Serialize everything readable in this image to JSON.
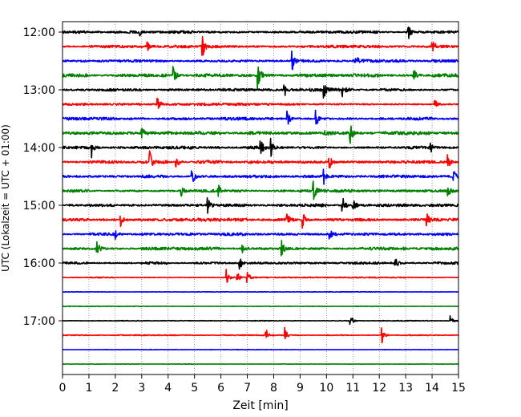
{
  "chart_data": {
    "type": "line",
    "xlabel": "Zeit  [min]",
    "ylabel": "UTC (Lokalzeit = UTC + 01:00)",
    "xlim": [
      0,
      15
    ],
    "x_ticks": [
      0,
      1,
      2,
      3,
      4,
      5,
      6,
      7,
      8,
      9,
      10,
      11,
      12,
      13,
      14,
      15
    ],
    "y_tick_labels": [
      "12:00",
      "13:00",
      "14:00",
      "15:00",
      "16:00",
      "17:00"
    ],
    "y_tick_rows": [
      0,
      4,
      8,
      12,
      16,
      20
    ],
    "grid": "vertical dotted at each minute",
    "colors": [
      "#000000",
      "#ff0000",
      "#0000ff",
      "#008000"
    ],
    "rows": [
      {
        "start": "12:00",
        "color": "#000000",
        "noise": 0.55,
        "events": [
          {
            "t": 2.9,
            "amp": 1.5
          },
          {
            "t": 13.1,
            "amp": 1.4
          }
        ]
      },
      {
        "start": "12:15",
        "color": "#ff0000",
        "noise": 0.55,
        "events": [
          {
            "t": 5.3,
            "amp": 2.2
          },
          {
            "t": 14.0,
            "amp": 1.8
          },
          {
            "t": 3.2,
            "amp": 0.9
          }
        ]
      },
      {
        "start": "12:30",
        "color": "#0000ff",
        "noise": 0.55,
        "events": [
          {
            "t": 8.7,
            "amp": 1.9
          },
          {
            "t": 11.1,
            "amp": 1.2
          }
        ]
      },
      {
        "start": "12:45",
        "color": "#008000",
        "noise": 0.65,
        "events": [
          {
            "t": 7.4,
            "amp": 3.8
          },
          {
            "t": 4.2,
            "amp": 1.6
          },
          {
            "t": 13.3,
            "amp": 1.4
          }
        ]
      },
      {
        "start": "13:00",
        "color": "#000000",
        "noise": 0.6,
        "events": [
          {
            "t": 8.4,
            "amp": 1.6
          },
          {
            "t": 9.9,
            "amp": 1.5
          },
          {
            "t": 10.6,
            "amp": 1.2
          }
        ]
      },
      {
        "start": "13:15",
        "color": "#ff0000",
        "noise": 0.55,
        "events": [
          {
            "t": 3.6,
            "amp": 1.5
          },
          {
            "t": 14.1,
            "amp": 1.4
          }
        ]
      },
      {
        "start": "13:30",
        "color": "#0000ff",
        "noise": 0.55,
        "events": [
          {
            "t": 8.5,
            "amp": 1.8
          },
          {
            "t": 9.6,
            "amp": 1.7
          }
        ]
      },
      {
        "start": "13:45",
        "color": "#008000",
        "noise": 0.7,
        "events": [
          {
            "t": 3.0,
            "amp": 1.5
          },
          {
            "t": 10.9,
            "amp": 1.8
          },
          {
            "t": 9.9,
            "amp": 1.0
          }
        ]
      },
      {
        "start": "14:00",
        "color": "#000000",
        "noise": 0.6,
        "events": [
          {
            "t": 1.1,
            "amp": 1.9
          },
          {
            "t": 7.5,
            "amp": 1.5
          },
          {
            "t": 7.9,
            "amp": 1.8
          },
          {
            "t": 13.9,
            "amp": 1.5
          }
        ]
      },
      {
        "start": "14:15",
        "color": "#ff0000",
        "noise": 0.6,
        "events": [
          {
            "t": 3.3,
            "amp": 2.0
          },
          {
            "t": 4.3,
            "amp": 1.6
          },
          {
            "t": 10.1,
            "amp": 1.5
          },
          {
            "t": 14.6,
            "amp": 1.3
          }
        ]
      },
      {
        "start": "14:30",
        "color": "#0000ff",
        "noise": 0.55,
        "events": [
          {
            "t": 4.9,
            "amp": 1.8
          },
          {
            "t": 9.9,
            "amp": 1.5
          },
          {
            "t": 14.8,
            "amp": 1.6
          }
        ]
      },
      {
        "start": "14:45",
        "color": "#008000",
        "noise": 0.55,
        "events": [
          {
            "t": 4.5,
            "amp": 1.5
          },
          {
            "t": 5.9,
            "amp": 1.2
          },
          {
            "t": 9.5,
            "amp": 1.9
          },
          {
            "t": 14.6,
            "amp": 1.3
          }
        ]
      },
      {
        "start": "15:00",
        "color": "#000000",
        "noise": 0.6,
        "events": [
          {
            "t": 5.5,
            "amp": 1.5
          },
          {
            "t": 10.6,
            "amp": 1.8
          },
          {
            "t": 11.0,
            "amp": 1.2
          }
        ]
      },
      {
        "start": "15:15",
        "color": "#ff0000",
        "noise": 0.65,
        "events": [
          {
            "t": 2.2,
            "amp": 1.3
          },
          {
            "t": 8.5,
            "amp": 1.4
          },
          {
            "t": 9.1,
            "amp": 1.6
          },
          {
            "t": 13.8,
            "amp": 1.4
          }
        ]
      },
      {
        "start": "15:30",
        "color": "#0000ff",
        "noise": 0.55,
        "events": [
          {
            "t": 2.0,
            "amp": 1.1
          },
          {
            "t": 10.1,
            "amp": 1.2
          }
        ]
      },
      {
        "start": "15:45",
        "color": "#008000",
        "noise": 0.6,
        "events": [
          {
            "t": 1.3,
            "amp": 1.5
          },
          {
            "t": 6.8,
            "amp": 1.2
          },
          {
            "t": 8.3,
            "amp": 1.4
          }
        ]
      },
      {
        "start": "16:00",
        "color": "#000000",
        "noise": 0.5,
        "events": [
          {
            "t": 6.7,
            "amp": 1.4
          },
          {
            "t": 12.6,
            "amp": 1.2
          }
        ]
      },
      {
        "start": "16:15",
        "color": "#ff0000",
        "noise": 0.25,
        "events": [
          {
            "t": 6.2,
            "amp": 2.0
          },
          {
            "t": 6.6,
            "amp": 1.6
          },
          {
            "t": 7.0,
            "amp": 1.3
          }
        ]
      },
      {
        "start": "16:30",
        "color": "#0000ff",
        "noise": 0.12,
        "events": []
      },
      {
        "start": "16:45",
        "color": "#008000",
        "noise": 0.12,
        "events": []
      },
      {
        "start": "17:00",
        "color": "#000000",
        "noise": 0.15,
        "events": [
          {
            "t": 10.9,
            "amp": 1.8
          },
          {
            "t": 14.7,
            "amp": 1.0
          }
        ]
      },
      {
        "start": "17:15",
        "color": "#ff0000",
        "noise": 0.2,
        "events": [
          {
            "t": 7.7,
            "amp": 1.4
          },
          {
            "t": 8.4,
            "amp": 2.0
          },
          {
            "t": 12.1,
            "amp": 1.5
          }
        ]
      },
      {
        "start": "17:30",
        "color": "#0000ff",
        "noise": 0.1,
        "events": []
      },
      {
        "start": "17:45",
        "color": "#008000",
        "noise": 0.1,
        "events": []
      }
    ]
  }
}
